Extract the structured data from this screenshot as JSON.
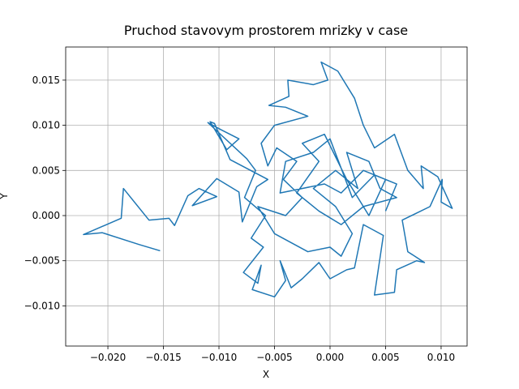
{
  "chart_data": {
    "type": "line",
    "title": "Pruchod stavovym prostorem mrizky v case",
    "x_label": "X",
    "y_label": "Y",
    "xlim": [
      -0.0238,
      0.01234
    ],
    "ylim": [
      -0.01445,
      0.01867
    ],
    "xticks": [
      {
        "value": -0.02,
        "label": "−0.020"
      },
      {
        "value": -0.015,
        "label": "−0.015"
      },
      {
        "value": -0.01,
        "label": "−0.010"
      },
      {
        "value": -0.005,
        "label": "−0.005"
      },
      {
        "value": 0,
        "label": "0.000"
      },
      0.005,
      {
        "value": 0.01,
        "label": "0.010"
      }
    ],
    "yticks": [
      {
        "value": -0.01,
        "label": "−0.010"
      },
      {
        "value": -0.005,
        "label": "−0.005"
      },
      {
        "value": 0,
        "label": "0.000"
      },
      0.005,
      {
        "value": 0.01,
        "label": "0.010"
      },
      0.015
    ],
    "grid": true,
    "x": [
      -0.0153,
      -0.0172,
      -0.0205,
      -0.0222,
      -0.0188,
      -0.0186,
      -0.0163,
      -0.0145,
      -0.014,
      -0.0128,
      -0.0118,
      -0.0102,
      -0.0124,
      -0.0102,
      -0.0082,
      -0.0079,
      -0.0066,
      -0.0056,
      -0.009,
      -0.0104,
      -0.0108,
      -0.0093,
      -0.0082,
      -0.0098,
      -0.011,
      -0.0075,
      -0.0067,
      -0.0077,
      -0.0058,
      -0.0071,
      -0.006,
      -0.0078,
      -0.0065,
      -0.0062,
      -0.007,
      -0.005,
      -0.004,
      -0.0045,
      -0.0035,
      -0.0025,
      -0.001,
      0,
      0.0015,
      0.0022,
      0.003,
      0.0048,
      0.004,
      0.0058,
      0.006,
      0.0078,
      0.0085,
      0.007,
      0.0065,
      0.009,
      0.0101,
      0.01,
      0.011,
      0.0097,
      0.0082,
      0.0084,
      0.007,
      0.0058,
      0.004,
      0.003,
      0.0022,
      0.0007,
      -0.0008,
      -0.0002,
      -0.0015,
      -0.0038,
      -0.0037,
      -0.0055,
      -0.004,
      -0.002,
      -0.005,
      -0.0062,
      -0.0056,
      -0.0048,
      -0.003,
      -0.0042,
      -0.0025,
      -0.004,
      -0.0065,
      -0.005,
      -0.0035,
      -0.002,
      0,
      0.001,
      0.002,
      0.0005,
      -0.0015,
      0.0005,
      0.0025,
      0.0015,
      0.0035,
      0.0045,
      0.006,
      0.003,
      0.001,
      -0.001,
      -0.003,
      -0.001,
      -0.0025,
      -0.0005,
      0.0015,
      0.0035,
      0.005,
      0.003,
      0.001,
      -0.0005,
      -0.0045,
      -0.004,
      -0.0015,
      0,
      0.002,
      0.004,
      0.006,
      0.005
    ],
    "series": [
      {
        "color": "#1f77b4",
        "values": [
          -0.0039,
          -0.0032,
          -0.0019,
          -0.0021,
          -0.0003,
          0.003,
          -0.0005,
          -0.0003,
          -0.0011,
          0.0022,
          0.003,
          0.0021,
          0.0011,
          0.0041,
          0.0026,
          -0.0007,
          0.0032,
          0.004,
          0.0062,
          0.0102,
          0.0104,
          0.0073,
          0.0085,
          0.0095,
          0.0103,
          0.0063,
          0.005,
          0.002,
          0,
          -0.0025,
          -0.0035,
          -0.0063,
          -0.0075,
          -0.0055,
          -0.0082,
          -0.009,
          -0.0072,
          -0.005,
          -0.008,
          -0.007,
          -0.0052,
          -0.007,
          -0.006,
          -0.0058,
          -0.001,
          -0.0022,
          -0.0088,
          -0.0085,
          -0.006,
          -0.005,
          -0.0052,
          -0.004,
          -0.0005,
          0.001,
          0.004,
          0.0015,
          0.0008,
          0.0043,
          0.0055,
          0.003,
          0.005,
          0.009,
          0.0075,
          0.01,
          0.013,
          0.016,
          0.017,
          0.015,
          0.0145,
          0.015,
          0.0132,
          0.0122,
          0.012,
          0.011,
          0.01,
          0.008,
          0.0055,
          0.0075,
          0.006,
          0.004,
          0.002,
          0,
          0.001,
          -0.002,
          -0.003,
          -0.004,
          -0.0035,
          -0.0045,
          -0.002,
          0.001,
          0.003,
          0.005,
          0.003,
          0.007,
          0.006,
          0.003,
          0.002,
          0.001,
          -0.001,
          0.0005,
          0.0025,
          0.006,
          0.008,
          0.009,
          0.004,
          0,
          0.004,
          0.005,
          0.0025,
          0.0035,
          0.0025,
          0.006,
          0.007,
          0.0085,
          0.002,
          0.0045,
          0.0035,
          0.0005
        ]
      }
    ]
  }
}
